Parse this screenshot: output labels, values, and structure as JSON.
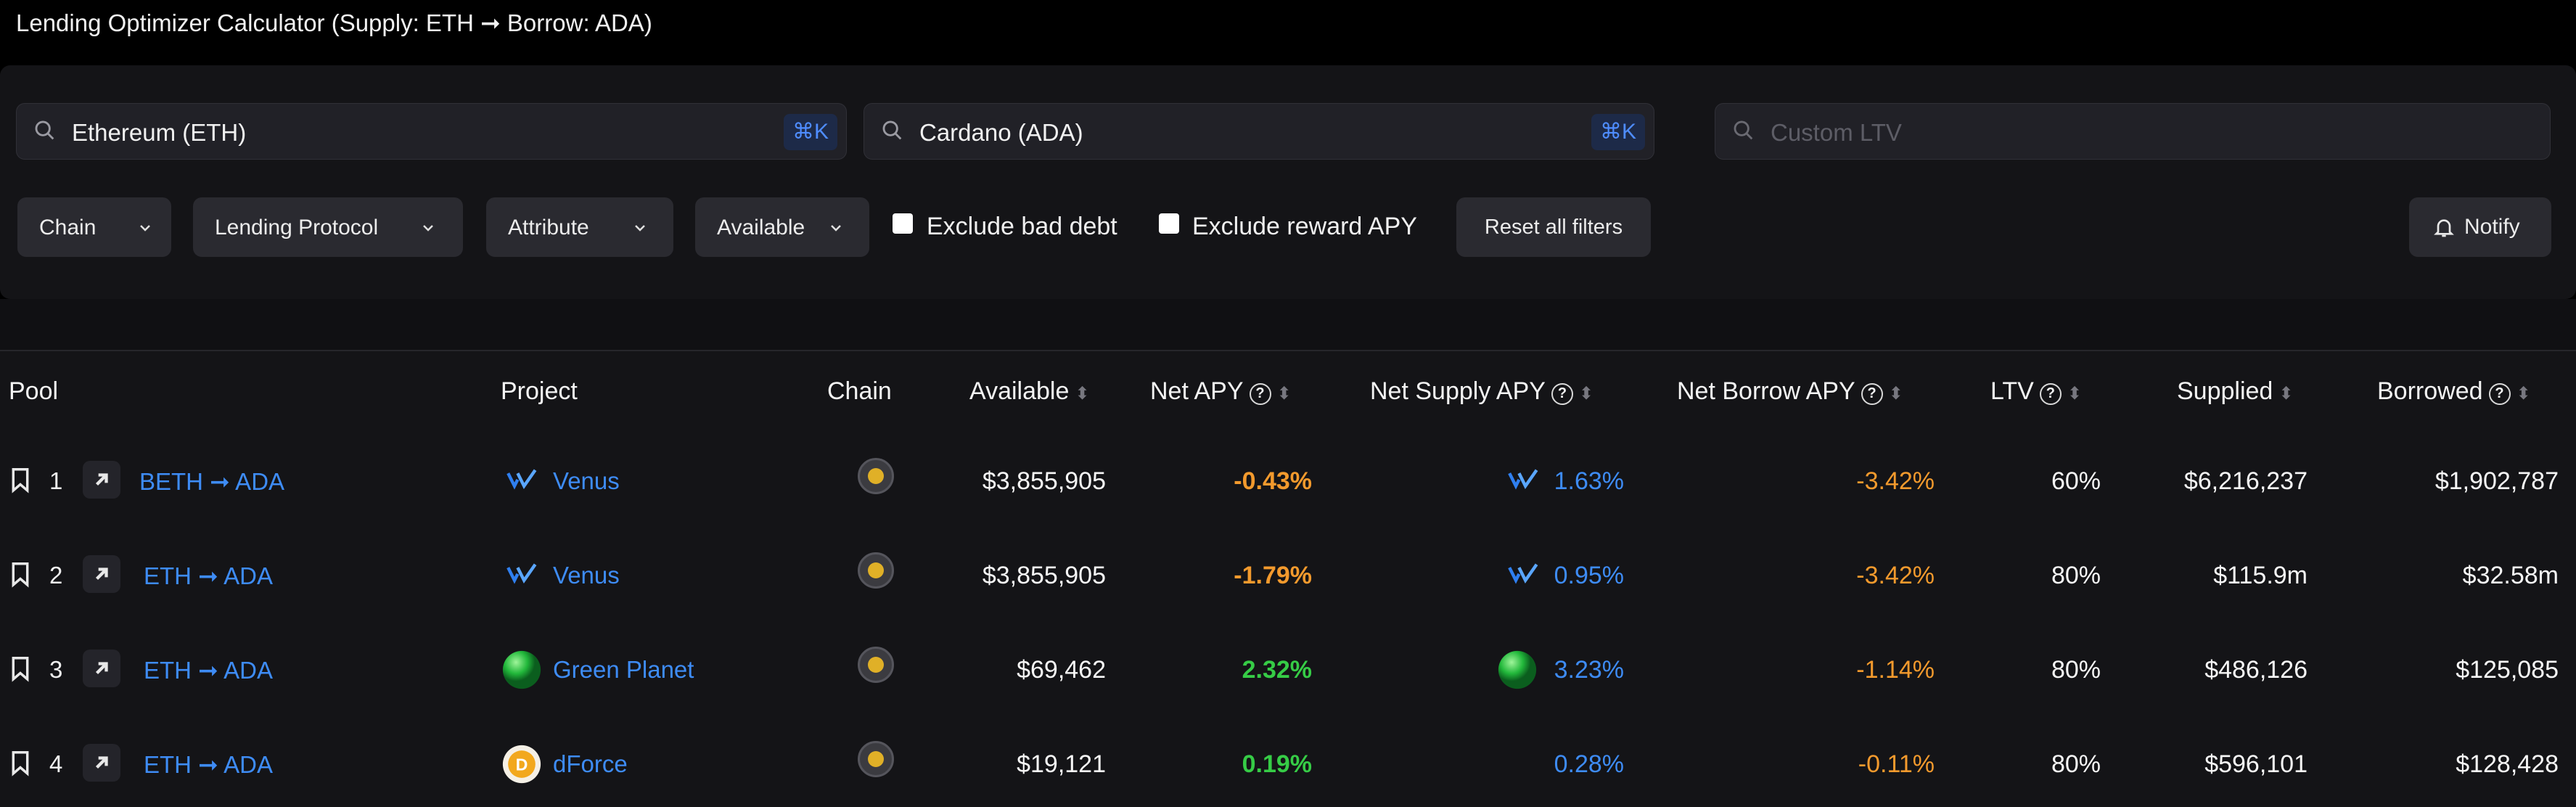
{
  "window": {
    "title": "Lending Optimizer Calculator (Supply: ETH ➞ Borrow: ADA)"
  },
  "search": {
    "supply": {
      "value": "Ethereum (ETH)",
      "shortcut": "⌘K"
    },
    "borrow": {
      "value": "Cardano (ADA)",
      "shortcut": "⌘K"
    },
    "ltv": {
      "placeholder": "Custom LTV"
    }
  },
  "filters": {
    "chain": "Chain",
    "protocol": "Lending Protocol",
    "attribute": "Attribute",
    "available": "Available",
    "exclude_bad_debt": "Exclude bad debt",
    "exclude_reward_apy": "Exclude reward APY",
    "reset": "Reset all filters",
    "notify": "Notify"
  },
  "table": {
    "headers": {
      "pool": "Pool",
      "project": "Project",
      "chain": "Chain",
      "available": "Available",
      "net_apy": "Net APY",
      "net_supply_apy": "Net Supply APY",
      "net_borrow_apy": "Net Borrow APY",
      "ltv": "LTV",
      "supplied": "Supplied",
      "borrowed": "Borrowed"
    },
    "rows": [
      {
        "rank": "1",
        "pool": "BETH ➞ ADA",
        "project": "Venus",
        "project_icon": "venus-logo-icon",
        "chain_icon": "bnb-chain-icon",
        "available": "$3,855,905",
        "net_apy": "-0.43%",
        "net_supply_apy": "1.63%",
        "net_borrow_apy": "-3.42%",
        "ltv": "60%",
        "supplied": "$6,216,237",
        "borrowed": "$1,902,787"
      },
      {
        "rank": "2",
        "pool": "ETH ➞ ADA",
        "project": "Venus",
        "project_icon": "venus-logo-icon",
        "chain_icon": "bnb-chain-icon",
        "available": "$3,855,905",
        "net_apy": "-1.79%",
        "net_supply_apy": "0.95%",
        "net_borrow_apy": "-3.42%",
        "ltv": "80%",
        "supplied": "$115.9m",
        "borrowed": "$32.58m"
      },
      {
        "rank": "3",
        "pool": "ETH ➞ ADA",
        "project": "Green Planet",
        "project_icon": "green-planet-logo-icon",
        "chain_icon": "bnb-chain-icon",
        "available": "$69,462",
        "net_apy": "2.32%",
        "net_supply_apy": "3.23%",
        "net_borrow_apy": "-1.14%",
        "ltv": "80%",
        "supplied": "$486,126",
        "borrowed": "$125,085"
      },
      {
        "rank": "4",
        "pool": "ETH ➞ ADA",
        "project": "dForce",
        "project_icon": "dforce-logo-icon",
        "chain_icon": "bnb-chain-icon",
        "available": "$19,121",
        "net_apy": "0.19%",
        "net_supply_apy": "0.28%",
        "net_borrow_apy": "-0.11%",
        "ltv": "80%",
        "supplied": "$596,101",
        "borrowed": "$128,428"
      }
    ]
  },
  "colors": {
    "link_blue": "#3e8cf6",
    "negative_orange": "#f39a2d",
    "positive_green": "#36cc46",
    "background": "#141417"
  }
}
